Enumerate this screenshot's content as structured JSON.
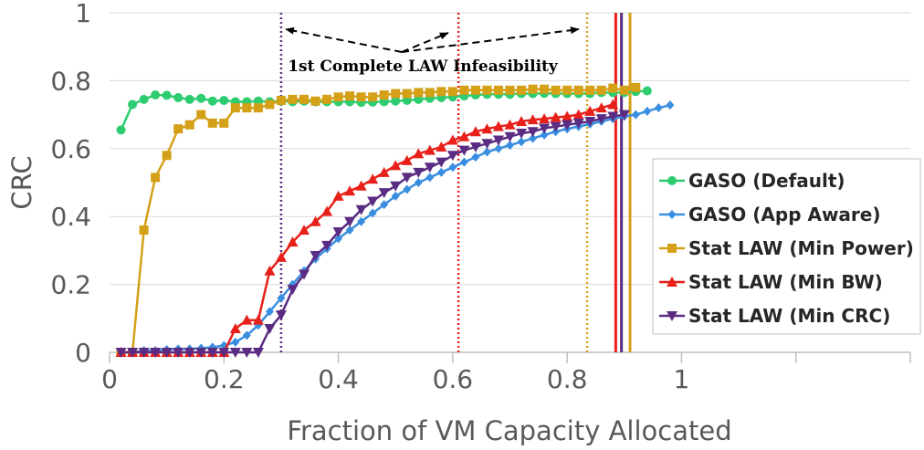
{
  "chart_data": {
    "type": "line",
    "xlabel": "Fraction of VM Capacity Allocated",
    "ylabel": "CRC",
    "xlim": [
      0,
      1.4
    ],
    "ylim": [
      0,
      1
    ],
    "x_ticks": [
      0,
      0.2,
      0.4,
      0.6,
      0.8,
      1
    ],
    "x_tick_labels": [
      "0",
      "0.2",
      "0.4",
      "0.6",
      "0.8",
      "1"
    ],
    "y_ticks": [
      0,
      0.2,
      0.4,
      0.6,
      0.8,
      1
    ],
    "y_tick_labels": [
      "0",
      "0.2",
      "0.4",
      "0.6",
      "0.8",
      "1"
    ],
    "grid": "horizontal",
    "legend_position": "right",
    "annotation": {
      "text": "1st Complete LAW Infeasibility",
      "arrow_targets_x": [
        0.3,
        0.6,
        0.83
      ]
    },
    "vertical_lines": [
      {
        "x": 0.3,
        "style": "dotted",
        "color": "#5b2c83"
      },
      {
        "x": 0.61,
        "style": "dotted",
        "color": "#e8201a"
      },
      {
        "x": 0.835,
        "style": "dotted",
        "color": "#d4a017"
      },
      {
        "x": 0.885,
        "style": "solid",
        "color": "#e8201a"
      },
      {
        "x": 0.895,
        "style": "solid",
        "color": "#5b2c83"
      },
      {
        "x": 0.91,
        "style": "solid",
        "color": "#d4a017"
      }
    ],
    "series": [
      {
        "name": "GASO (Default)",
        "color": "#2ecc71",
        "marker": "circle",
        "x": [
          0.02,
          0.04,
          0.06,
          0.08,
          0.1,
          0.12,
          0.14,
          0.16,
          0.18,
          0.2,
          0.22,
          0.24,
          0.26,
          0.28,
          0.3,
          0.32,
          0.34,
          0.36,
          0.38,
          0.4,
          0.42,
          0.44,
          0.46,
          0.48,
          0.5,
          0.52,
          0.54,
          0.56,
          0.58,
          0.6,
          0.62,
          0.64,
          0.66,
          0.68,
          0.7,
          0.72,
          0.74,
          0.76,
          0.78,
          0.8,
          0.82,
          0.84,
          0.86,
          0.88,
          0.9,
          0.92,
          0.94
        ],
        "y": [
          0.655,
          0.73,
          0.745,
          0.758,
          0.757,
          0.75,
          0.745,
          0.748,
          0.74,
          0.742,
          0.738,
          0.738,
          0.74,
          0.738,
          0.74,
          0.738,
          0.74,
          0.738,
          0.738,
          0.738,
          0.738,
          0.736,
          0.737,
          0.738,
          0.74,
          0.742,
          0.745,
          0.748,
          0.75,
          0.752,
          0.755,
          0.758,
          0.76,
          0.76,
          0.76,
          0.762,
          0.762,
          0.763,
          0.762,
          0.762,
          0.762,
          0.762,
          0.765,
          0.765,
          0.765,
          0.768,
          0.77
        ]
      },
      {
        "name": "GASO (App Aware)",
        "color": "#3a8ee0",
        "marker": "diamond",
        "x": [
          0.02,
          0.04,
          0.06,
          0.08,
          0.1,
          0.12,
          0.14,
          0.16,
          0.18,
          0.2,
          0.22,
          0.24,
          0.26,
          0.28,
          0.3,
          0.32,
          0.34,
          0.36,
          0.38,
          0.4,
          0.42,
          0.44,
          0.46,
          0.48,
          0.5,
          0.52,
          0.54,
          0.56,
          0.58,
          0.6,
          0.62,
          0.64,
          0.66,
          0.68,
          0.7,
          0.72,
          0.74,
          0.76,
          0.78,
          0.8,
          0.82,
          0.84,
          0.86,
          0.88,
          0.9,
          0.92,
          0.94,
          0.96,
          0.98
        ],
        "y": [
          0.0,
          0.0,
          0.005,
          0.005,
          0.008,
          0.01,
          0.01,
          0.012,
          0.015,
          0.02,
          0.03,
          0.05,
          0.08,
          0.12,
          0.16,
          0.2,
          0.24,
          0.275,
          0.305,
          0.335,
          0.36,
          0.385,
          0.41,
          0.435,
          0.46,
          0.48,
          0.5,
          0.515,
          0.53,
          0.545,
          0.56,
          0.575,
          0.59,
          0.6,
          0.61,
          0.62,
          0.63,
          0.64,
          0.65,
          0.658,
          0.665,
          0.672,
          0.68,
          0.688,
          0.695,
          0.7,
          0.71,
          0.72,
          0.728
        ]
      },
      {
        "name": "Stat LAW (Min Power)",
        "color": "#d4a017",
        "marker": "square",
        "x": [
          0.02,
          0.04,
          0.06,
          0.08,
          0.1,
          0.12,
          0.14,
          0.16,
          0.18,
          0.2,
          0.22,
          0.24,
          0.26,
          0.28,
          0.3,
          0.32,
          0.34,
          0.36,
          0.38,
          0.4,
          0.42,
          0.44,
          0.46,
          0.48,
          0.5,
          0.52,
          0.54,
          0.56,
          0.58,
          0.6,
          0.62,
          0.64,
          0.66,
          0.68,
          0.7,
          0.72,
          0.74,
          0.76,
          0.78,
          0.8,
          0.82,
          0.84,
          0.86,
          0.88,
          0.9,
          0.92
        ],
        "y": [
          0.0,
          0.0,
          0.36,
          0.515,
          0.58,
          0.658,
          0.67,
          0.7,
          0.675,
          0.675,
          0.72,
          0.72,
          0.72,
          0.73,
          0.742,
          0.745,
          0.745,
          0.74,
          0.745,
          0.752,
          0.755,
          0.752,
          0.752,
          0.758,
          0.762,
          0.762,
          0.765,
          0.765,
          0.768,
          0.768,
          0.772,
          0.772,
          0.772,
          0.772,
          0.772,
          0.772,
          0.775,
          0.775,
          0.772,
          0.772,
          0.772,
          0.772,
          0.772,
          0.778,
          0.772,
          0.78
        ]
      },
      {
        "name": "Stat LAW (Min BW)",
        "color": "#e8201a",
        "marker": "triangle-up",
        "x": [
          0.02,
          0.04,
          0.06,
          0.08,
          0.1,
          0.12,
          0.14,
          0.16,
          0.18,
          0.2,
          0.22,
          0.24,
          0.26,
          0.28,
          0.3,
          0.32,
          0.34,
          0.36,
          0.38,
          0.4,
          0.42,
          0.44,
          0.46,
          0.48,
          0.5,
          0.52,
          0.54,
          0.56,
          0.58,
          0.6,
          0.62,
          0.64,
          0.66,
          0.68,
          0.7,
          0.72,
          0.74,
          0.76,
          0.78,
          0.8,
          0.82,
          0.84,
          0.86,
          0.88
        ],
        "y": [
          0.0,
          0.0,
          0.0,
          0.0,
          0.0,
          0.0,
          0.0,
          0.0,
          0.0,
          0.0,
          0.07,
          0.095,
          0.095,
          0.24,
          0.28,
          0.325,
          0.36,
          0.385,
          0.415,
          0.46,
          0.475,
          0.49,
          0.51,
          0.53,
          0.55,
          0.565,
          0.585,
          0.595,
          0.605,
          0.625,
          0.635,
          0.65,
          0.658,
          0.665,
          0.67,
          0.68,
          0.685,
          0.688,
          0.692,
          0.695,
          0.7,
          0.71,
          0.72,
          0.73
        ]
      },
      {
        "name": "Stat LAW (Min CRC)",
        "color": "#5b2c83",
        "marker": "triangle-down",
        "x": [
          0.02,
          0.04,
          0.06,
          0.08,
          0.1,
          0.12,
          0.14,
          0.16,
          0.18,
          0.2,
          0.22,
          0.24,
          0.26,
          0.28,
          0.3,
          0.32,
          0.34,
          0.36,
          0.38,
          0.4,
          0.42,
          0.44,
          0.46,
          0.48,
          0.5,
          0.52,
          0.54,
          0.56,
          0.58,
          0.6,
          0.62,
          0.64,
          0.66,
          0.68,
          0.7,
          0.72,
          0.74,
          0.76,
          0.78,
          0.8,
          0.82,
          0.84,
          0.86,
          0.88,
          0.9
        ],
        "y": [
          0.0,
          0.0,
          0.0,
          0.0,
          0.0,
          0.0,
          0.0,
          0.0,
          0.0,
          0.0,
          0.0,
          0.0,
          0.0,
          0.07,
          0.11,
          0.185,
          0.23,
          0.285,
          0.315,
          0.355,
          0.385,
          0.42,
          0.445,
          0.47,
          0.49,
          0.515,
          0.53,
          0.545,
          0.56,
          0.58,
          0.595,
          0.605,
          0.615,
          0.625,
          0.635,
          0.645,
          0.65,
          0.66,
          0.665,
          0.67,
          0.675,
          0.68,
          0.688,
          0.695,
          0.7
        ]
      }
    ]
  }
}
